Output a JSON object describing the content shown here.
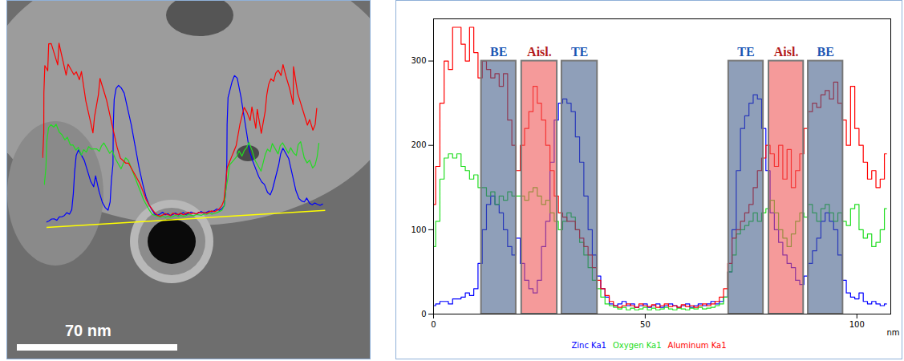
{
  "chart_data": {
    "type": "line",
    "x": [
      0,
      1,
      2,
      3,
      4,
      5,
      6,
      7,
      8,
      9,
      10,
      11,
      12,
      13,
      14,
      15,
      16,
      17,
      18,
      19,
      20,
      21,
      22,
      23,
      24,
      25,
      26,
      27,
      28,
      29,
      30,
      31,
      32,
      33,
      34,
      35,
      36,
      37,
      38,
      39,
      40,
      41,
      42,
      43,
      44,
      45,
      46,
      47,
      48,
      49,
      50,
      51,
      52,
      53,
      54,
      55,
      56,
      57,
      58,
      59,
      60,
      61,
      62,
      63,
      64,
      65,
      66,
      67,
      68,
      69,
      70,
      71,
      72,
      73,
      74,
      75,
      76,
      77,
      78,
      79,
      80,
      81,
      82,
      83,
      84,
      85,
      86,
      87,
      88,
      89,
      90,
      91,
      92,
      93,
      94,
      95,
      96,
      97,
      98,
      99,
      100,
      101,
      102,
      103,
      104,
      105,
      106,
      107
    ],
    "series": [
      {
        "name": "Zinc Ka1",
        "color": "#0000ff",
        "values": [
          10,
          12,
          15,
          15,
          12,
          18,
          18,
          20,
          25,
          22,
          30,
          60,
          100,
          130,
          140,
          130,
          120,
          100,
          80,
          70,
          90,
          60,
          40,
          30,
          25,
          40,
          80,
          110,
          180,
          230,
          250,
          255,
          250,
          240,
          210,
          180,
          140,
          100,
          70,
          45,
          30,
          20,
          12,
          10,
          12,
          15,
          10,
          12,
          8,
          10,
          12,
          8,
          10,
          12,
          8,
          10,
          12,
          10,
          8,
          10,
          12,
          8,
          10,
          12,
          10,
          12,
          15,
          12,
          15,
          20,
          50,
          100,
          170,
          220,
          235,
          250,
          260,
          255,
          220,
          170,
          120,
          100,
          85,
          70,
          60,
          55,
          40,
          35,
          45,
          60,
          75,
          90,
          110,
          120,
          110,
          100,
          70,
          40,
          25,
          20,
          18,
          25,
          15,
          12,
          15,
          12,
          10,
          12
        ]
      },
      {
        "name": "Oxygen Ka1",
        "color": "#22dd22",
        "values": [
          80,
          110,
          160,
          185,
          190,
          185,
          190,
          175,
          170,
          160,
          165,
          150,
          150,
          140,
          145,
          130,
          140,
          135,
          145,
          140,
          140,
          140,
          135,
          145,
          150,
          140,
          130,
          135,
          120,
          110,
          100,
          110,
          120,
          115,
          100,
          85,
          70,
          55,
          40,
          30,
          20,
          12,
          10,
          8,
          6,
          8,
          5,
          7,
          5,
          6,
          8,
          5,
          7,
          5,
          6,
          8,
          6,
          5,
          7,
          6,
          5,
          7,
          6,
          8,
          6,
          7,
          8,
          10,
          12,
          20,
          50,
          70,
          95,
          100,
          105,
          110,
          120,
          110,
          120,
          125,
          135,
          120,
          100,
          90,
          80,
          95,
          110,
          120,
          115,
          130,
          120,
          110,
          125,
          130,
          120,
          110,
          120,
          110,
          105,
          125,
          130,
          100,
          90,
          95,
          80,
          85,
          100,
          125
        ]
      },
      {
        "name": "Aluminum Ka1",
        "color": "#ff0000",
        "values": [
          130,
          175,
          250,
          300,
          290,
          340,
          340,
          320,
          300,
          340,
          310,
          280,
          300,
          290,
          280,
          285,
          270,
          285,
          230,
          200,
          170,
          200,
          220,
          240,
          270,
          250,
          230,
          200,
          170,
          140,
          120,
          115,
          110,
          110,
          100,
          90,
          80,
          70,
          55,
          40,
          30,
          22,
          15,
          10,
          8,
          10,
          12,
          10,
          8,
          12,
          10,
          9,
          11,
          8,
          10,
          12,
          9,
          10,
          8,
          11,
          9,
          10,
          8,
          10,
          12,
          10,
          12,
          15,
          20,
          30,
          60,
          90,
          100,
          110,
          120,
          130,
          150,
          170,
          185,
          200,
          190,
          175,
          200,
          160,
          195,
          150,
          170,
          190,
          220,
          240,
          250,
          245,
          260,
          265,
          255,
          275,
          250,
          230,
          200,
          270,
          220,
          200,
          180,
          160,
          170,
          150,
          160,
          190
        ]
      }
    ],
    "xlim": [
      0,
      108
    ],
    "xticks": [
      0,
      50,
      100
    ],
    "ylim": [
      0,
      350
    ],
    "yticks": [
      0,
      100,
      200,
      300
    ],
    "xlabel": "nm",
    "legend": "bottom",
    "bands": [
      {
        "label": "BE",
        "x0": 11.3,
        "x1": 19.5,
        "y0": 0,
        "y1": 300,
        "color": "#445f8a"
      },
      {
        "label": "Aisl.",
        "x0": 20.8,
        "x1": 29.2,
        "y0": 0,
        "y1": 300,
        "color": "#ee5757"
      },
      {
        "label": "TE",
        "x0": 30.3,
        "x1": 38.7,
        "y0": 0,
        "y1": 300,
        "color": "#445f8a"
      },
      {
        "label": "TE",
        "x0": 69.7,
        "x1": 77.9,
        "y0": 0,
        "y1": 300,
        "color": "#445f8a"
      },
      {
        "label": "Aisl.",
        "x0": 79.2,
        "x1": 87.4,
        "y0": 0,
        "y1": 300,
        "color": "#ee5757"
      },
      {
        "label": "BE",
        "x0": 88.5,
        "x1": 96.7,
        "y0": 0,
        "y1": 300,
        "color": "#445f8a"
      }
    ]
  },
  "micrograph": {
    "scale_bar": "70 nm"
  }
}
